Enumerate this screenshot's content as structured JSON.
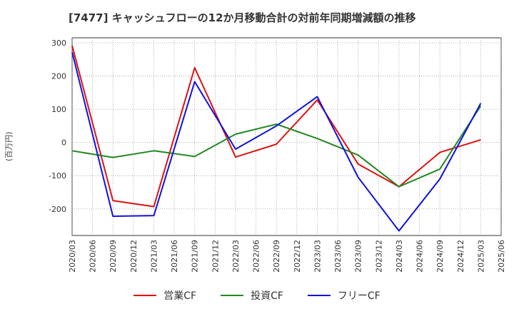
{
  "chart_data": {
    "type": "line",
    "title": "[7477]  キャッシュフローの12か月移動合計の対前年同期増減額の推移",
    "ylabel": "(百万円)",
    "ylim": [
      -280,
      315
    ],
    "yticks": [
      300,
      200,
      100,
      0,
      -100,
      -200
    ],
    "x_ticks": [
      "2020/03",
      "2020/06",
      "2020/09",
      "2020/12",
      "2021/03",
      "2021/06",
      "2021/09",
      "2021/12",
      "2022/03",
      "2022/06",
      "2022/09",
      "2022/12",
      "2023/03",
      "2023/06",
      "2023/09",
      "2023/12",
      "2024/03",
      "2024/06",
      "2024/09",
      "2024/12",
      "2025/03",
      "2025/06"
    ],
    "x": [
      "2020/03",
      "2020/09",
      "2021/03",
      "2021/09",
      "2022/03",
      "2022/09",
      "2023/03",
      "2023/09",
      "2024/03",
      "2024/09",
      "2025/03"
    ],
    "grid": true,
    "legend_position": "bottom",
    "series": [
      {
        "name": "営業CF",
        "color": "#dd1111",
        "values": [
          292,
          -175,
          -193,
          225,
          -44,
          -5,
          128,
          -65,
          -133,
          -30,
          8
        ]
      },
      {
        "name": "投資CF",
        "color": "#228822",
        "values": [
          -25,
          -45,
          -25,
          -42,
          25,
          55,
          12,
          -38,
          -133,
          -80,
          110
        ]
      },
      {
        "name": "フリーCF",
        "color": "#1111dd",
        "values": [
          272,
          -222,
          -220,
          183,
          -20,
          50,
          138,
          -105,
          -266,
          -110,
          118
        ]
      }
    ]
  }
}
